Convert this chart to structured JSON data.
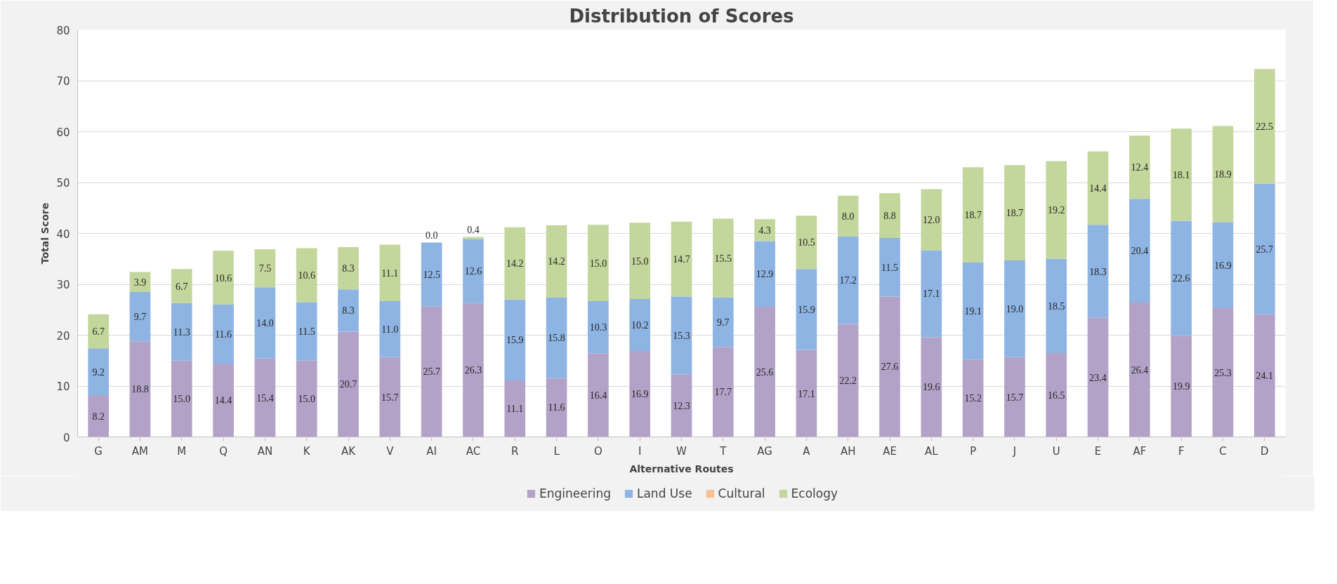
{
  "chart_data": {
    "type": "bar",
    "stacked": true,
    "title": "Distribution of Scores",
    "xlabel": "Alternative Routes",
    "ylabel": "Total Score",
    "categories": [
      "G",
      "AM",
      "M",
      "Q",
      "AN",
      "K",
      "AK",
      "V",
      "AI",
      "AC",
      "R",
      "L",
      "O",
      "I",
      "W",
      "T",
      "AG",
      "A",
      "AH",
      "AE",
      "AL",
      "P",
      "J",
      "U",
      "E",
      "AF",
      "F",
      "C",
      "D"
    ],
    "series": [
      {
        "name": "Engineering",
        "color": "#b3a2c7",
        "values": [
          8.2,
          18.8,
          15.0,
          14.4,
          15.4,
          15.0,
          20.7,
          15.7,
          25.7,
          26.3,
          11.1,
          11.6,
          16.4,
          16.9,
          12.3,
          17.7,
          25.6,
          17.1,
          22.2,
          27.6,
          19.6,
          15.2,
          15.7,
          16.5,
          23.4,
          26.4,
          19.9,
          25.3,
          24.1
        ],
        "value_labels": [
          "8.2",
          "18.8",
          "15.0",
          "14.4",
          "15.4",
          "15.0",
          "20.7",
          "15.7",
          "25.7",
          "26.3",
          "11.1",
          "11.6",
          "16.4",
          "16.9",
          "12.3",
          "17.7",
          "25.6",
          "17.1",
          "22.2",
          "27.6",
          "19.6",
          "15.2",
          "15.7",
          "16.5",
          "23.4",
          "26.4",
          "19.9",
          "25.3",
          "24.1"
        ]
      },
      {
        "name": "Land Use",
        "color": "#8eb4e3",
        "values": [
          9.2,
          9.7,
          11.3,
          11.6,
          14.0,
          11.5,
          8.3,
          11.0,
          12.5,
          12.6,
          15.9,
          15.8,
          10.3,
          10.2,
          15.3,
          9.7,
          12.9,
          15.9,
          17.2,
          11.5,
          17.1,
          19.1,
          19.0,
          18.5,
          18.3,
          20.4,
          22.6,
          16.9,
          25.7
        ],
        "value_labels": [
          "9.2",
          "9.7",
          "11.3",
          "11.6",
          "14.0",
          "11.5",
          "8.3",
          "11.0",
          "12.5",
          "12.6",
          "15.9",
          "15.8",
          "10.3",
          "10.2",
          "15.3",
          "9.7",
          "12.9",
          "15.9",
          "17.2",
          "11.5",
          "17.1",
          "19.1",
          "19.0",
          "18.5",
          "18.3",
          "20.4",
          "22.6",
          "16.9",
          "25.7"
        ]
      },
      {
        "name": "Cultural",
        "color": "#fac090",
        "values": [
          0,
          0,
          0,
          0,
          0,
          0,
          0,
          0,
          0,
          0,
          0,
          0,
          0,
          0,
          0,
          0,
          0,
          0,
          0,
          0,
          0,
          0,
          0,
          0,
          0,
          0,
          0,
          0,
          0
        ]
      },
      {
        "name": "Ecology",
        "color": "#c3d69b",
        "values": [
          6.7,
          3.9,
          6.7,
          10.6,
          7.5,
          10.6,
          8.3,
          11.1,
          0.0,
          0.4,
          14.2,
          14.2,
          15.0,
          15.0,
          14.7,
          15.5,
          4.3,
          10.5,
          8.0,
          8.8,
          12.0,
          18.7,
          18.7,
          19.2,
          14.4,
          12.4,
          18.1,
          18.9,
          22.5
        ],
        "value_labels": [
          "6.7",
          "3.9",
          "6.7",
          "10.6",
          "7.5",
          "10.6",
          "8.3",
          "11.1",
          "0.0",
          "0.4",
          "14.2",
          "14.2",
          "15.0",
          "15.0",
          "14.7",
          "15.5",
          "4.3",
          "10.5",
          "8.0",
          "8.8",
          "12.0",
          "18.7",
          "18.7",
          "19.2",
          "14.4",
          "12.4",
          "18.1",
          "18.9",
          "22.5"
        ]
      }
    ],
    "ylim": [
      0,
      80
    ],
    "yticks": [
      0,
      10,
      20,
      30,
      40,
      50,
      60,
      70,
      80
    ],
    "grid": "y",
    "legend": "bottom"
  }
}
